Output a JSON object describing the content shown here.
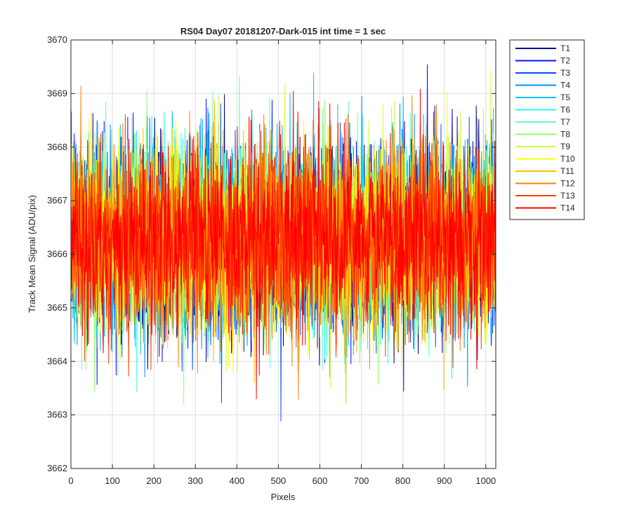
{
  "chart_data": {
    "type": "line",
    "title": "RS04 Day07 20181207-Dark-015 int time = 1 sec",
    "xlabel": "Pixels",
    "ylabel": "Track Mean Signal (ADU/pix)",
    "xlim": [
      0,
      1024
    ],
    "ylim": [
      3662,
      3670
    ],
    "xticks": [
      "0",
      "100",
      "200",
      "300",
      "400",
      "500",
      "600",
      "700",
      "800",
      "900",
      "1000"
    ],
    "yticks": [
      "3662",
      "3663",
      "3664",
      "3665",
      "3666",
      "3667",
      "3668",
      "3669",
      "3670"
    ],
    "grid": true,
    "legend_position": "outside-top-right",
    "points_per_series": 1024,
    "noise": {
      "mean": 3666.3,
      "std": 0.85,
      "min": 3662.55,
      "max": 3669.95
    },
    "series": [
      {
        "name": "T1",
        "color": "#00008f"
      },
      {
        "name": "T2",
        "color": "#0010ff"
      },
      {
        "name": "T3",
        "color": "#0050ff"
      },
      {
        "name": "T4",
        "color": "#0090ff"
      },
      {
        "name": "T5",
        "color": "#00c0ff"
      },
      {
        "name": "T6",
        "color": "#20ffdf"
      },
      {
        "name": "T7",
        "color": "#60ffbf"
      },
      {
        "name": "T8",
        "color": "#8fff70"
      },
      {
        "name": "T9",
        "color": "#cfff30"
      },
      {
        "name": "T10",
        "color": "#ffff00"
      },
      {
        "name": "T11",
        "color": "#ffc000"
      },
      {
        "name": "T12",
        "color": "#ff8000"
      },
      {
        "name": "T13",
        "color": "#ff4000"
      },
      {
        "name": "T14",
        "color": "#ff0000"
      }
    ]
  }
}
